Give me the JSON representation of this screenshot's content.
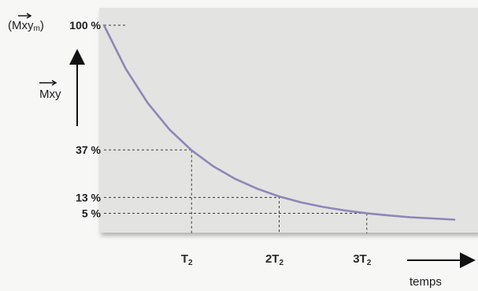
{
  "chart_data": {
    "type": "line",
    "title": "",
    "xlabel": "temps",
    "ylabel": "Mxy",
    "ylabel_max": "(Mxy",
    "ylabel_max_sub": "m",
    "ylabel_max_close": ")",
    "x": [
      0,
      0.25,
      0.5,
      0.75,
      1,
      1.25,
      1.5,
      1.75,
      2,
      2.25,
      2.5,
      2.75,
      3,
      3.25,
      3.5,
      3.75,
      4
    ],
    "y": [
      100,
      77.9,
      60.7,
      47.2,
      36.8,
      28.7,
      22.3,
      17.4,
      13.5,
      10.5,
      8.2,
      6.4,
      5.0,
      3.9,
      3.0,
      2.4,
      1.8
    ],
    "xlim": [
      0,
      4
    ],
    "ylim": [
      0,
      100
    ],
    "y_ticks": [
      {
        "value": 100,
        "label": "100 %"
      },
      {
        "value": 37,
        "label": "37 %"
      },
      {
        "value": 13,
        "label": "13 %"
      },
      {
        "value": 5,
        "label": "5 %"
      }
    ],
    "x_ticks": [
      {
        "value": 1,
        "label": "T",
        "sub": "2"
      },
      {
        "value": 2,
        "label": "2T",
        "sub": "2"
      },
      {
        "value": 3,
        "label": "3T",
        "sub": "2"
      }
    ],
    "grid": false,
    "legend": "none",
    "colors": {
      "curve": "#8f86b6",
      "plot_bg": "#e3e3e1",
      "guide": "#3a3a3a",
      "axis_arrow": "#111111"
    }
  }
}
